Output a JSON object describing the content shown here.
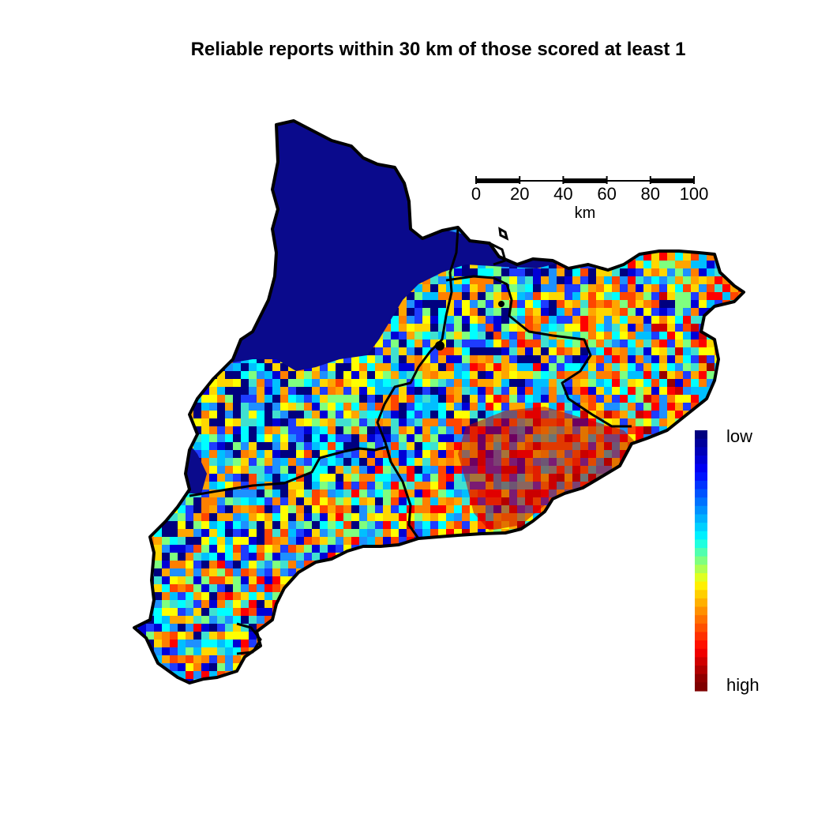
{
  "title": "Reliable reports within 30 km of those scored at least 1",
  "scalebar": {
    "ticks": [
      "0",
      "20",
      "40",
      "60",
      "80",
      "100"
    ],
    "unit": "km"
  },
  "legend": {
    "low_label": "low",
    "high_label": "high",
    "colors": [
      "#00007f",
      "#00009c",
      "#0000b9",
      "#0000d6",
      "#0000f3",
      "#0013ff",
      "#0033ff",
      "#0052ff",
      "#0072ff",
      "#0091ff",
      "#00b1ff",
      "#00d0ff",
      "#00f0ff",
      "#20ffdf",
      "#50ffaf",
      "#7fff7f",
      "#afff50",
      "#dfff20",
      "#ffef00",
      "#ffcf00",
      "#ffb000",
      "#ff9000",
      "#ff7000",
      "#ff5000",
      "#ff3000",
      "#ff1000",
      "#f00000",
      "#d00000",
      "#b00000",
      "#900000",
      "#7f0000"
    ]
  },
  "map": {
    "region_count": 4,
    "palette": [
      "#00007f",
      "#0000d6",
      "#1e3cff",
      "#1e90ff",
      "#00bfff",
      "#40e0d0",
      "#00ffff",
      "#7fff7f",
      "#ffff00",
      "#ffd700",
      "#ffa500",
      "#ff7f00",
      "#ff4500",
      "#ff0000",
      "#cc0000",
      "#990000"
    ]
  }
}
